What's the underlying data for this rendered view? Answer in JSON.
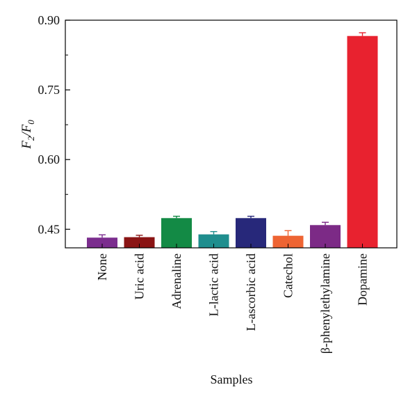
{
  "chart_data": {
    "type": "bar",
    "categories": [
      "None",
      "Uric acid",
      "Adrenaline",
      "L-lactic acid",
      "L-ascorbic acid",
      "Catechol",
      "β-phenylethylamine",
      "Dopamine"
    ],
    "values": [
      0.432,
      0.433,
      0.474,
      0.439,
      0.474,
      0.436,
      0.459,
      0.866
    ],
    "errors": [
      0.006,
      0.004,
      0.004,
      0.006,
      0.004,
      0.011,
      0.006,
      0.007
    ],
    "colors": [
      "#7b2d8e",
      "#8a1414",
      "#138a45",
      "#1f8e8e",
      "#27287a",
      "#ee6433",
      "#7c2a86",
      "#e8222f"
    ],
    "title": "",
    "xlabel": "Samples",
    "ylabel": "F₂/F₀",
    "ylim": [
      0.41,
      0.9
    ],
    "yticks": [
      "0.90",
      "0.75",
      "0.60",
      "0.45"
    ],
    "ytick_values": [
      0.9,
      0.75,
      0.6,
      0.45
    ],
    "grid": false,
    "legend": "none"
  }
}
